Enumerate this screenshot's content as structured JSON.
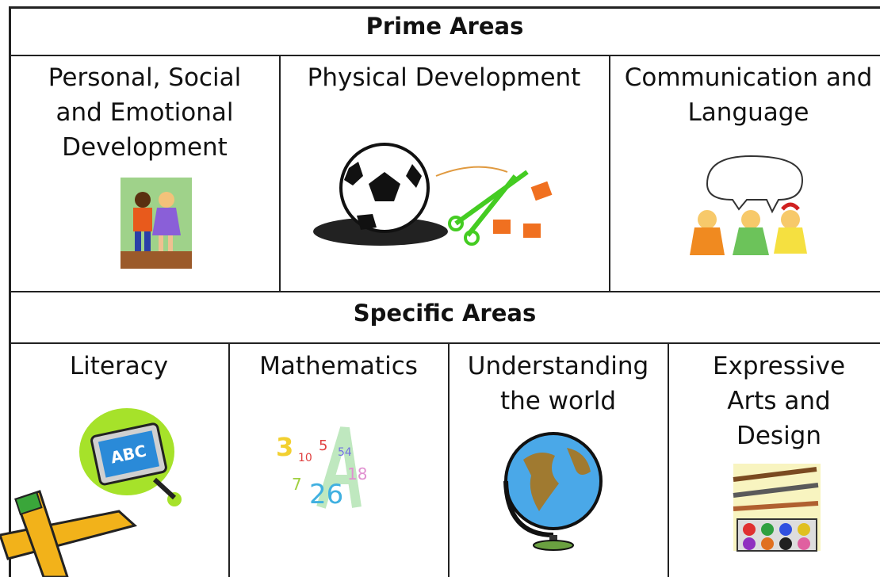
{
  "prime_areas": {
    "title": "Prime Areas",
    "cells": [
      "Personal, Social and Emotional Development",
      "Physical Development",
      "Communication and Language"
    ]
  },
  "specific_areas": {
    "title": "Specific Areas",
    "cells": [
      "Literacy",
      "Mathematics",
      "Understanding the world",
      "Expressive Arts and Design"
    ]
  },
  "clipart": {
    "literacy_board": "ABC",
    "mathematics_numbers": [
      3,
      10,
      5,
      54,
      7,
      26,
      18
    ]
  }
}
